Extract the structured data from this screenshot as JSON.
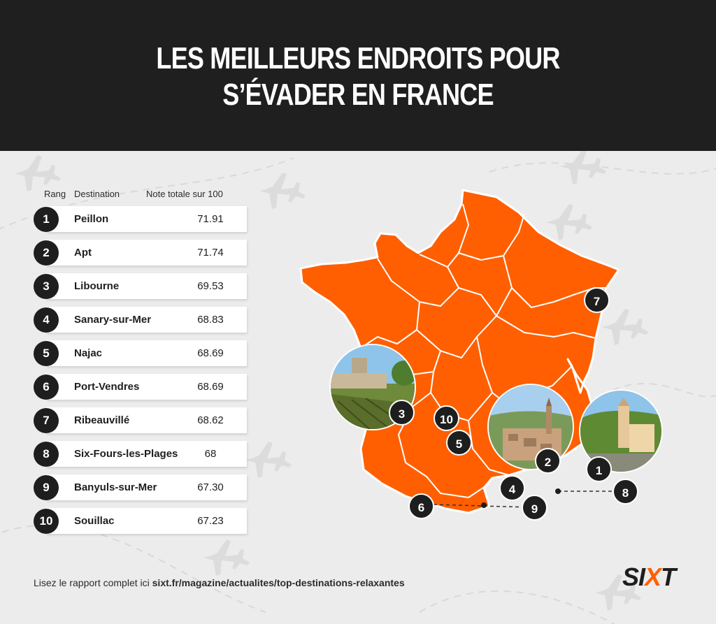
{
  "header": {
    "title_line1": "LES MEILLEURS ENDROITS POUR",
    "title_line2": "S’ÉVADER EN FRANCE"
  },
  "table": {
    "col_rank": "Rang",
    "col_destination": "Destination",
    "col_score": "Note totale sur 100",
    "rows": [
      {
        "rank": "1",
        "destination": "Peillon",
        "score": "71.91"
      },
      {
        "rank": "2",
        "destination": "Apt",
        "score": "71.74"
      },
      {
        "rank": "3",
        "destination": "Libourne",
        "score": "69.53"
      },
      {
        "rank": "4",
        "destination": "Sanary-sur-Mer",
        "score": "68.83"
      },
      {
        "rank": "5",
        "destination": "Najac",
        "score": "68.69"
      },
      {
        "rank": "6",
        "destination": "Port-Vendres",
        "score": "68.69"
      },
      {
        "rank": "7",
        "destination": "Ribeauvillé",
        "score": "68.62"
      },
      {
        "rank": "8",
        "destination": "Six-Fours-les-Plages",
        "score": "68"
      },
      {
        "rank": "9",
        "destination": "Banyuls-sur-Mer",
        "score": "67.30"
      },
      {
        "rank": "10",
        "destination": "Souillac",
        "score": "67.23"
      }
    ]
  },
  "map": {
    "color": "#ff5f00",
    "pins": [
      "7",
      "3",
      "10",
      "5",
      "2",
      "1",
      "4",
      "8",
      "6",
      "9"
    ]
  },
  "footer": {
    "text": "Lisez le rapport complet ici",
    "link": "sixt.fr/magazine/actualites/top-destinations-relaxantes",
    "logo_a": "SI",
    "logo_x": "X",
    "logo_b": "T"
  },
  "colors": {
    "header_bg": "#1f1f1f",
    "background": "#ececec",
    "accent": "#ff5f00",
    "badge": "#1e1e1e"
  }
}
